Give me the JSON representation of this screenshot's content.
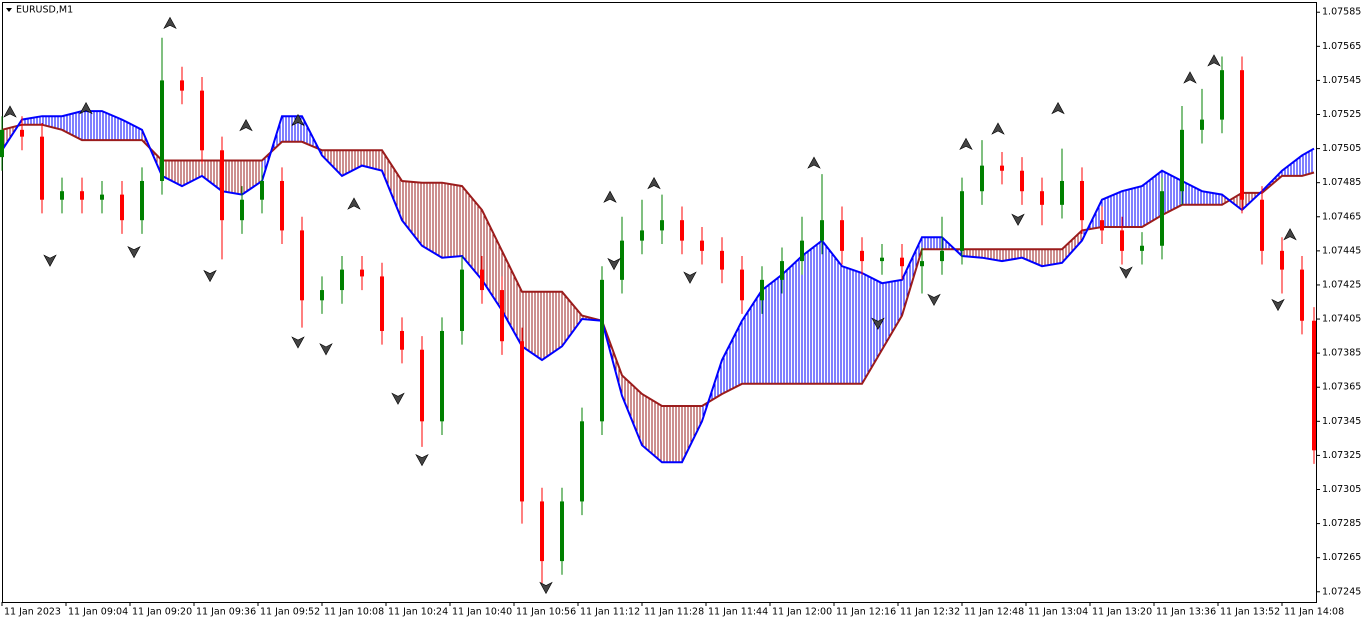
{
  "chart_data": {
    "type": "candlestick",
    "title": "EURUSD,M1",
    "up_color": "#008000",
    "down_color": "#ff0000",
    "ylim": [
      1.07239,
      1.07591
    ],
    "yticks": [
      1.07585,
      1.07565,
      1.07545,
      1.07525,
      1.07505,
      1.07485,
      1.07465,
      1.07445,
      1.07425,
      1.07405,
      1.07385,
      1.07365,
      1.07345,
      1.07325,
      1.07305,
      1.07285,
      1.07265,
      1.07245
    ],
    "xlim": [
      0,
      328.5
    ],
    "xticks": [
      {
        "value": 0,
        "label": "11 Jan 2023"
      },
      {
        "value": 16,
        "label": "11 Jan 09:04"
      },
      {
        "value": 32,
        "label": "11 Jan 09:20"
      },
      {
        "value": 48,
        "label": "11 Jan 09:36"
      },
      {
        "value": 64,
        "label": "11 Jan 09:52"
      },
      {
        "value": 80,
        "label": "11 Jan 10:08"
      },
      {
        "value": 96,
        "label": "11 Jan 10:24"
      },
      {
        "value": 112,
        "label": "11 Jan 10:40"
      },
      {
        "value": 128,
        "label": "11 Jan 10:56"
      },
      {
        "value": 144,
        "label": "11 Jan 11:12"
      },
      {
        "value": 160,
        "label": "11 Jan 11:28"
      },
      {
        "value": 176,
        "label": "11 Jan 11:44"
      },
      {
        "value": 192,
        "label": "11 Jan 12:00"
      },
      {
        "value": 208,
        "label": "11 Jan 12:16"
      },
      {
        "value": 224,
        "label": "11 Jan 12:32"
      },
      {
        "value": 240,
        "label": "11 Jan 12:48"
      },
      {
        "value": 256,
        "label": "11 Jan 13:04"
      },
      {
        "value": 272,
        "label": "11 Jan 13:20"
      },
      {
        "value": 288,
        "label": "11 Jan 13:36"
      },
      {
        "value": 304,
        "label": "11 Jan 13:52"
      },
      {
        "value": 320,
        "label": "11 Jan 14:08"
      }
    ],
    "x": [
      0,
      5,
      10,
      15,
      20,
      25,
      30,
      35,
      40,
      45,
      50,
      55,
      60,
      65,
      70,
      75,
      80,
      85,
      90,
      95,
      100,
      105,
      110,
      115,
      120,
      125,
      130,
      135,
      140,
      145,
      150,
      155,
      160,
      165,
      170,
      175,
      180,
      185,
      190,
      195,
      200,
      205,
      210,
      215,
      220,
      225,
      230,
      235,
      240,
      245,
      250,
      255,
      260,
      265,
      270,
      275,
      280,
      285,
      290,
      295,
      300,
      305,
      310,
      315,
      320,
      325,
      328
    ],
    "ohlc": [
      [
        1.075,
        1.07524,
        1.07492,
        1.07516
      ],
      [
        1.07516,
        1.07524,
        1.07504,
        1.07512
      ],
      [
        1.07512,
        1.0752,
        1.07467,
        1.07475
      ],
      [
        1.07475,
        1.07488,
        1.07467,
        1.0748
      ],
      [
        1.0748,
        1.07488,
        1.07467,
        1.07475
      ],
      [
        1.07475,
        1.07486,
        1.07467,
        1.07478
      ],
      [
        1.07478,
        1.07486,
        1.07455,
        1.07463
      ],
      [
        1.07463,
        1.07494,
        1.07455,
        1.07486
      ],
      [
        1.07486,
        1.0757,
        1.07478,
        1.07545
      ],
      [
        1.07545,
        1.07553,
        1.07531,
        1.07539
      ],
      [
        1.07539,
        1.07547,
        1.07496,
        1.07504
      ],
      [
        1.07504,
        1.07512,
        1.0744,
        1.07463
      ],
      [
        1.07463,
        1.07483,
        1.07455,
        1.07475
      ],
      [
        1.07475,
        1.07494,
        1.07467,
        1.07486
      ],
      [
        1.07486,
        1.07494,
        1.07449,
        1.07457
      ],
      [
        1.07457,
        1.07465,
        1.074,
        1.07416
      ],
      [
        1.07416,
        1.0743,
        1.07408,
        1.07422
      ],
      [
        1.07422,
        1.07442,
        1.07414,
        1.07434
      ],
      [
        1.07434,
        1.07442,
        1.07422,
        1.0743
      ],
      [
        1.0743,
        1.07438,
        1.0739,
        1.07398
      ],
      [
        1.07398,
        1.07406,
        1.07379,
        1.07387
      ],
      [
        1.07387,
        1.07395,
        1.0733,
        1.07345
      ],
      [
        1.07345,
        1.07406,
        1.07337,
        1.07398
      ],
      [
        1.07398,
        1.07442,
        1.0739,
        1.07434
      ],
      [
        1.07434,
        1.07442,
        1.07414,
        1.07422
      ],
      [
        1.07422,
        1.0743,
        1.07384,
        1.07392
      ],
      [
        1.07392,
        1.074,
        1.07285,
        1.07298
      ],
      [
        1.07298,
        1.07306,
        1.0725,
        1.07263
      ],
      [
        1.07263,
        1.07306,
        1.07255,
        1.07298
      ],
      [
        1.07298,
        1.07353,
        1.0729,
        1.07345
      ],
      [
        1.07345,
        1.07436,
        1.07337,
        1.07428
      ],
      [
        1.07428,
        1.07465,
        1.0742,
        1.07451
      ],
      [
        1.07451,
        1.07475,
        1.07443,
        1.07457
      ],
      [
        1.07457,
        1.07478,
        1.07449,
        1.07463
      ],
      [
        1.07463,
        1.07471,
        1.07443,
        1.07451
      ],
      [
        1.07451,
        1.07459,
        1.07437,
        1.07445
      ],
      [
        1.07445,
        1.07453,
        1.07426,
        1.07434
      ],
      [
        1.07434,
        1.07442,
        1.07408,
        1.07416
      ],
      [
        1.07416,
        1.07436,
        1.07408,
        1.07428
      ],
      [
        1.07428,
        1.07447,
        1.0742,
        1.07439
      ],
      [
        1.07439,
        1.07465,
        1.07431,
        1.07451
      ],
      [
        1.07451,
        1.0749,
        1.07443,
        1.07463
      ],
      [
        1.07463,
        1.07471,
        1.07437,
        1.07445
      ],
      [
        1.07445,
        1.07453,
        1.07431,
        1.07439
      ],
      [
        1.07439,
        1.07449,
        1.07431,
        1.07441
      ],
      [
        1.07441,
        1.07449,
        1.07428,
        1.07436
      ],
      [
        1.07436,
        1.07447,
        1.0742,
        1.07439
      ],
      [
        1.07439,
        1.07465,
        1.07431,
        1.07445
      ],
      [
        1.07445,
        1.07488,
        1.07437,
        1.0748
      ],
      [
        1.0748,
        1.0751,
        1.07472,
        1.07495
      ],
      [
        1.07495,
        1.07503,
        1.07484,
        1.07492
      ],
      [
        1.07492,
        1.075,
        1.07472,
        1.0748
      ],
      [
        1.0748,
        1.07488,
        1.0746,
        1.07472
      ],
      [
        1.07472,
        1.07505,
        1.07464,
        1.07486
      ],
      [
        1.07486,
        1.07494,
        1.07455,
        1.07463
      ],
      [
        1.07463,
        1.07471,
        1.07449,
        1.07457
      ],
      [
        1.07457,
        1.07465,
        1.07437,
        1.07445
      ],
      [
        1.07445,
        1.07456,
        1.07437,
        1.07448
      ],
      [
        1.07448,
        1.07488,
        1.0744,
        1.0748
      ],
      [
        1.0748,
        1.0753,
        1.07472,
        1.07516
      ],
      [
        1.07516,
        1.0754,
        1.07508,
        1.07522
      ],
      [
        1.07522,
        1.07559,
        1.07514,
        1.07551
      ],
      [
        1.07551,
        1.07559,
        1.07467,
        1.07475
      ],
      [
        1.07475,
        1.07483,
        1.07437,
        1.07445
      ],
      [
        1.07445,
        1.07453,
        1.0742,
        1.07434
      ],
      [
        1.07434,
        1.07442,
        1.07396,
        1.07404
      ],
      [
        1.07404,
        1.07412,
        1.0732,
        1.07328
      ]
    ],
    "span_a": {
      "color": "#0000ff",
      "values": [
        1.07504,
        1.07522,
        1.07524,
        1.07524,
        1.07527,
        1.07527,
        1.07522,
        1.07516,
        1.07489,
        1.07483,
        1.07489,
        1.0748,
        1.07478,
        1.07486,
        1.07524,
        1.07524,
        1.07501,
        1.07489,
        1.07495,
        1.07492,
        1.07463,
        1.07448,
        1.07441,
        1.07442,
        1.07428,
        1.0741,
        1.07389,
        1.07381,
        1.07389,
        1.07405,
        1.07404,
        1.0736,
        1.07331,
        1.07321,
        1.07321,
        1.07345,
        1.07381,
        1.07404,
        1.07422,
        1.07431,
        1.07442,
        1.07451,
        1.07436,
        1.07432,
        1.07426,
        1.07428,
        1.07453,
        1.07453,
        1.07442,
        1.07441,
        1.07439,
        1.07441,
        1.07436,
        1.07438,
        1.07451,
        1.07475,
        1.0748,
        1.07483,
        1.07492,
        1.07486,
        1.0748,
        1.07478,
        1.07469,
        1.0748,
        1.07492,
        1.07501,
        1.07505
      ]
    },
    "span_b": {
      "color": "#9b1c1c",
      "values": [
        1.07516,
        1.07519,
        1.07519,
        1.07516,
        1.0751,
        1.0751,
        1.0751,
        1.0751,
        1.07498,
        1.07498,
        1.07498,
        1.07498,
        1.07498,
        1.07498,
        1.07509,
        1.07509,
        1.07504,
        1.07504,
        1.07504,
        1.07504,
        1.07486,
        1.07485,
        1.07485,
        1.07483,
        1.07469,
        1.07445,
        1.07421,
        1.07421,
        1.07421,
        1.07407,
        1.07404,
        1.07372,
        1.07361,
        1.07354,
        1.07354,
        1.07354,
        1.07361,
        1.07367,
        1.07367,
        1.07367,
        1.07367,
        1.07367,
        1.07367,
        1.07367,
        1.07387,
        1.07407,
        1.07446,
        1.07446,
        1.07446,
        1.07446,
        1.07446,
        1.07446,
        1.07446,
        1.07446,
        1.07457,
        1.07459,
        1.07459,
        1.07459,
        1.07466,
        1.07472,
        1.07472,
        1.07472,
        1.07479,
        1.07479,
        1.07489,
        1.07489,
        1.07491
      ]
    },
    "fractals_up": {
      "x": [
        2,
        21,
        42,
        61,
        74,
        88,
        152,
        163,
        203,
        241,
        249,
        264,
        297,
        303,
        322
      ],
      "values": [
        1.0753,
        1.07532,
        1.07582,
        1.07522,
        1.07525,
        1.07476,
        1.0748,
        1.07488,
        1.075,
        1.07511,
        1.0752,
        1.07532,
        1.0755,
        1.0756,
        1.07458
      ]
    },
    "fractals_down": {
      "x": [
        12,
        33,
        52,
        74,
        81,
        99,
        105,
        136,
        153,
        172,
        219,
        233,
        254,
        281,
        319
      ],
      "values": [
        1.07436,
        1.07441,
        1.07427,
        1.07388,
        1.07384,
        1.07355,
        1.07319,
        1.07244,
        1.07434,
        1.07426,
        1.07399,
        1.07413,
        1.0746,
        1.07429,
        1.0741
      ]
    }
  }
}
